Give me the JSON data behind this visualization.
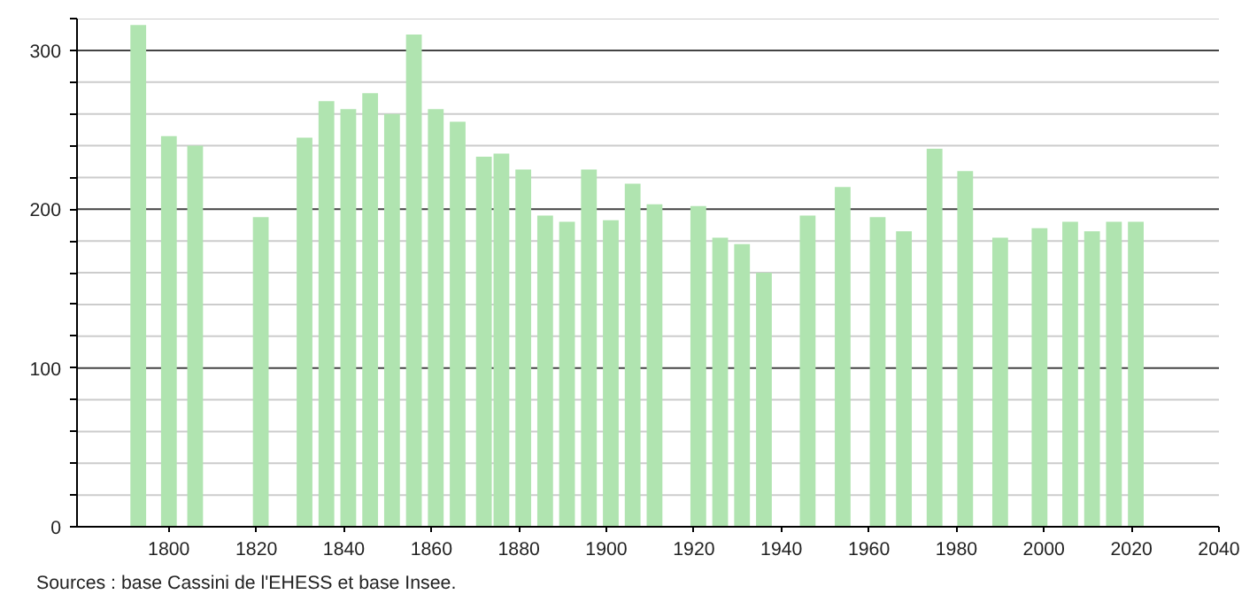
{
  "chart_data": {
    "type": "bar",
    "x": [
      1793,
      1800,
      1806,
      1821,
      1831,
      1836,
      1841,
      1846,
      1851,
      1856,
      1861,
      1866,
      1872,
      1876,
      1881,
      1886,
      1891,
      1896,
      1901,
      1906,
      1911,
      1921,
      1926,
      1931,
      1936,
      1946,
      1954,
      1962,
      1968,
      1975,
      1982,
      1990,
      1999,
      2006,
      2011,
      2016,
      2021
    ],
    "values": [
      316,
      246,
      240,
      195,
      245,
      268,
      263,
      273,
      260,
      310,
      263,
      255,
      233,
      235,
      225,
      196,
      192,
      225,
      193,
      216,
      203,
      202,
      182,
      178,
      160,
      196,
      214,
      195,
      186,
      238,
      224,
      182,
      188,
      192,
      186,
      192,
      192
    ],
    "color": "#b0e4b0",
    "xlim": [
      1779,
      2040
    ],
    "xticks": [
      1800,
      1820,
      1840,
      1860,
      1880,
      1900,
      1920,
      1940,
      1960,
      1980,
      2000,
      2020,
      2040
    ],
    "ylim": [
      0,
      320
    ],
    "yticks": [
      0,
      {
        "value": 20,
        "label": null
      },
      {
        "value": 40,
        "label": null
      },
      {
        "value": 60,
        "label": null
      },
      {
        "value": 80,
        "label": null
      },
      100,
      {
        "value": 120,
        "label": null
      },
      {
        "value": 140,
        "label": null
      },
      {
        "value": 160,
        "label": null
      },
      {
        "value": 180,
        "label": null
      },
      200,
      {
        "value": 220,
        "label": null
      },
      {
        "value": 240,
        "label": null
      },
      {
        "value": 260,
        "label": null
      },
      {
        "value": 280,
        "label": null
      },
      300,
      {
        "value": 320,
        "label": null
      }
    ],
    "grid": "y",
    "annotations": [
      "Sources : base Cassini de l'EHESS et base Insee."
    ]
  }
}
